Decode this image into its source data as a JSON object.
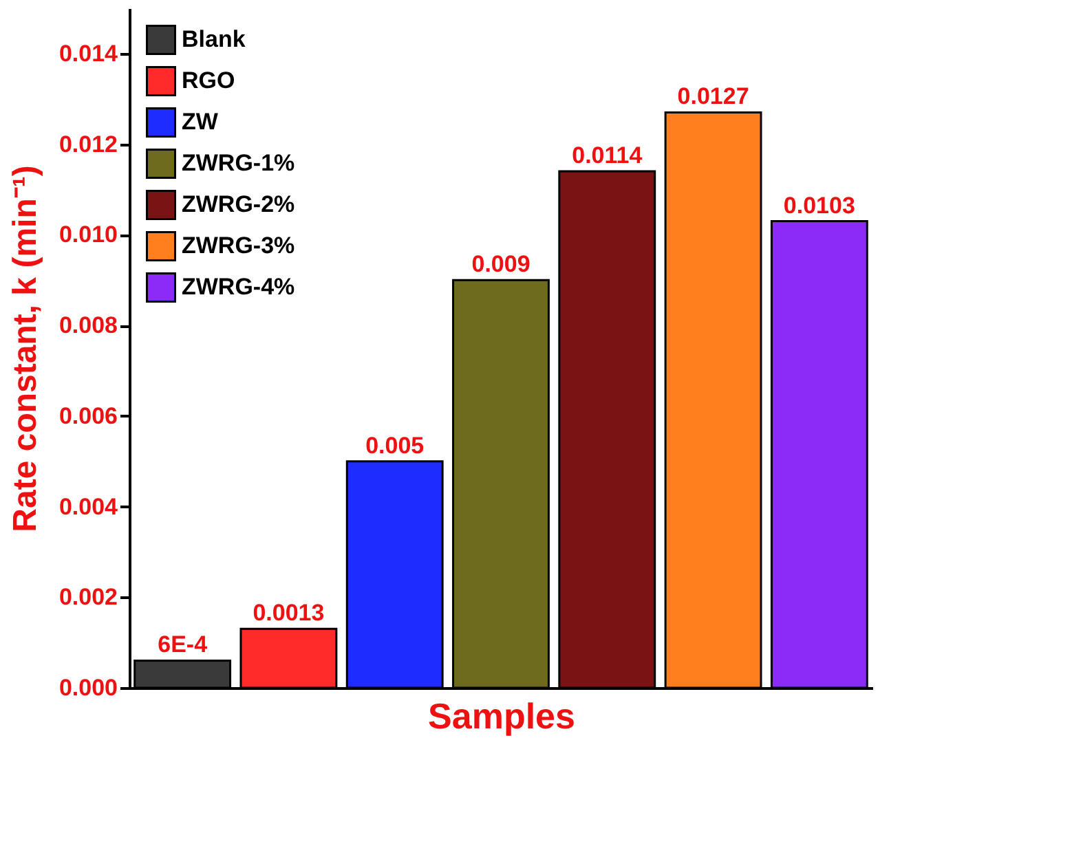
{
  "chart_data": {
    "type": "bar",
    "xlabel": "Samples",
    "ylabel": "Rate constant, k (min⁻¹)",
    "categories": [
      null,
      null,
      null,
      null,
      null,
      null,
      null
    ],
    "series": [
      {
        "name": "Blank",
        "color": "#3a3a3a",
        "values": [
          0.0006,
          null,
          null,
          null,
          null,
          null,
          null
        ],
        "value_labels": [
          "6E-4",
          null,
          null,
          null,
          null,
          null,
          null
        ]
      },
      {
        "name": "RGO",
        "color": "#ff2a2a",
        "values": [
          null,
          0.0013,
          null,
          null,
          null,
          null,
          null
        ],
        "value_labels": [
          null,
          "0.0013",
          null,
          null,
          null,
          null,
          null
        ]
      },
      {
        "name": "ZW",
        "color": "#1f2cff",
        "values": [
          null,
          null,
          0.005,
          null,
          null,
          null,
          null
        ],
        "value_labels": [
          null,
          null,
          "0.005",
          null,
          null,
          null,
          null
        ]
      },
      {
        "name": "ZWRG-1%",
        "color": "#6e6b1e",
        "values": [
          null,
          null,
          null,
          0.009,
          null,
          null,
          null
        ],
        "value_labels": [
          null,
          null,
          null,
          "0.009",
          null,
          null,
          null
        ]
      },
      {
        "name": "ZWRG-2%",
        "color": "#7a1414",
        "values": [
          null,
          null,
          null,
          null,
          0.0114,
          null,
          null
        ],
        "value_labels": [
          null,
          null,
          null,
          null,
          "0.0114",
          null,
          null
        ]
      },
      {
        "name": "ZWRG-3%",
        "color": "#ff7f1e",
        "values": [
          null,
          null,
          null,
          null,
          null,
          0.0127,
          null
        ],
        "value_labels": [
          null,
          null,
          null,
          null,
          null,
          "0.0127",
          null
        ]
      },
      {
        "name": "ZWRG-4%",
        "color": "#8a2cf5",
        "values": [
          null,
          null,
          null,
          null,
          null,
          null,
          0.0103
        ],
        "value_labels": [
          null,
          null,
          null,
          null,
          null,
          null,
          "0.0103"
        ]
      }
    ],
    "ylim": [
      0,
      0.015
    ],
    "yticks": [
      {
        "value": 0,
        "label": "0.000"
      },
      {
        "value": 0.002,
        "label": "0.002"
      },
      {
        "value": 0.004,
        "label": "0.004"
      },
      {
        "value": 0.006,
        "label": "0.006"
      },
      {
        "value": 0.008,
        "label": "0.008"
      },
      {
        "value": 0.01,
        "label": "0.010"
      },
      {
        "value": 0.012,
        "label": "0.012"
      },
      {
        "value": 0.014,
        "label": "0.014"
      }
    ],
    "tick_labels": "y",
    "legend": "top left",
    "grid": false
  }
}
